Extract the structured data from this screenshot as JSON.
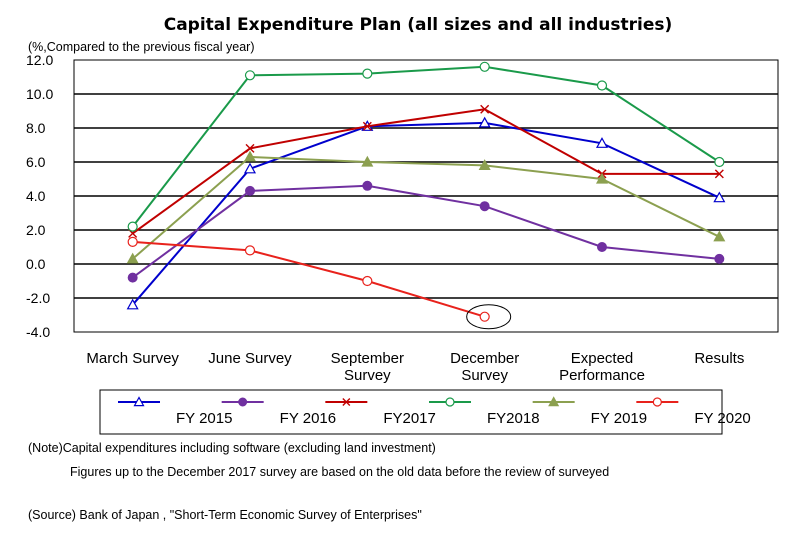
{
  "chart_data": {
    "type": "line",
    "title": "Capital Expenditure Plan (all sizes and all industries)",
    "ylabel": "(%,Compared to the previous fiscal year)",
    "xlabel": "",
    "ylim": [
      -4.0,
      12.0
    ],
    "yticks": [
      "12.0",
      "10.0",
      "8.0",
      "6.0",
      "4.0",
      "2.0",
      "0.0",
      "-2.0",
      "-4.0"
    ],
    "grid": "horizontal",
    "legend_position": "bottom",
    "categories": [
      [
        "March Survey"
      ],
      [
        "June Survey"
      ],
      [
        "September",
        "Survey"
      ],
      [
        "December",
        "Survey"
      ],
      [
        "Expected",
        "Performance"
      ],
      [
        "Results"
      ]
    ],
    "series": [
      {
        "name": "FY 2015",
        "color": "#0000cc",
        "marker": "open-triangle",
        "values": [
          -2.4,
          5.6,
          8.1,
          8.3,
          7.1,
          3.9
        ]
      },
      {
        "name": "FY 2016",
        "color": "#7030a0",
        "marker": "filled-circle",
        "values": [
          -0.8,
          4.3,
          4.6,
          3.4,
          1.0,
          0.3
        ]
      },
      {
        "name": "FY2017",
        "color": "#c00000",
        "marker": "cross",
        "values": [
          1.8,
          6.8,
          8.1,
          9.1,
          5.3,
          5.3
        ]
      },
      {
        "name": "FY2018",
        "color": "#1a9a4a",
        "marker": "open-circle",
        "values": [
          2.2,
          11.1,
          11.2,
          11.6,
          10.5,
          6.0
        ]
      },
      {
        "name": "FY 2019",
        "color": "#8ca050",
        "marker": "filled-triangle",
        "values": [
          0.3,
          6.3,
          6.0,
          5.8,
          5.0,
          1.6
        ]
      },
      {
        "name": "FY 2020",
        "color": "#e8221c",
        "marker": "open-circle",
        "values": [
          1.3,
          0.8,
          -1.0,
          -3.1,
          null,
          null
        ]
      }
    ],
    "annotations": [
      {
        "type": "ellipse",
        "series": "FY 2020",
        "category_index": 3,
        "value": -3.1
      }
    ]
  },
  "notes": {
    "note1": "(Note)Capital expenditures including software (excluding land investment)",
    "note2": "Figures up to the December 2017 survey are based on the old data before the review of surveyed",
    "source": "(Source) Bank of Japan , \"Short-Term Economic Survey of Enterprises\""
  }
}
